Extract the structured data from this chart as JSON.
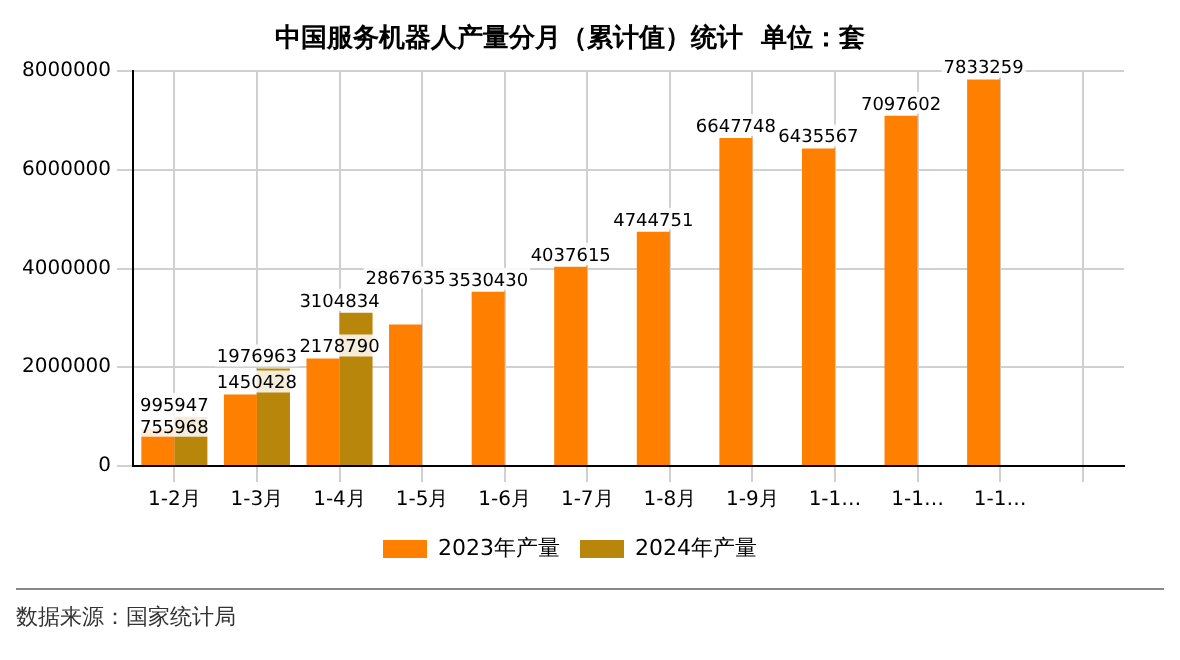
{
  "chart_data": {
    "type": "bar",
    "title": "中国服务机器人产量分月（累计值）统计  单位：套",
    "categories": [
      "1-2月",
      "1-3月",
      "1-4月",
      "1-5月",
      "1-6月",
      "1-7月",
      "1-8月",
      "1-9月",
      "1-1…",
      "1-1…",
      "1-1…",
      null
    ],
    "series": [
      {
        "name": "2023年产量",
        "color": "#ff8000",
        "values": [
          755968,
          1450428,
          2178790,
          2867635,
          3530430,
          4037615,
          4744751,
          6647748,
          6435567,
          7097602,
          7833259,
          null
        ]
      },
      {
        "name": "2024年产量",
        "color": "#b8860b",
        "values": [
          995947,
          1976963,
          3104834,
          null,
          null,
          null,
          null,
          null,
          null,
          null,
          null,
          null
        ]
      }
    ],
    "ylim": [
      0,
      8000000
    ],
    "yticks": [
      0,
      2000000,
      4000000,
      6000000,
      8000000
    ],
    "grid": true,
    "legend": "bottom",
    "data_labels": true,
    "annotations": [
      "数据来源：国家统计局"
    ]
  }
}
